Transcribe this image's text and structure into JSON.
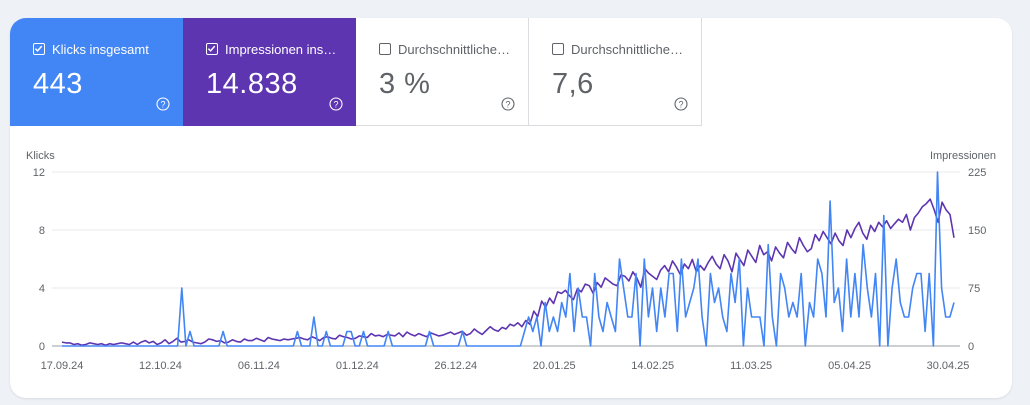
{
  "colors": {
    "clicks": "#4285f4",
    "impressions": "#5e35b1",
    "clicks_line": "#4285f4",
    "impressions_line": "#5e35b1",
    "grid": "#e8eaed",
    "baseline": "#9aa0a6"
  },
  "tiles": [
    {
      "label": "Klicks insgesamt",
      "value": "443",
      "checked": true,
      "bg": "#4285f4",
      "icon": "help-circle-icon"
    },
    {
      "label": "Impressionen ins…",
      "value": "14.838",
      "checked": true,
      "bg": "#5e35b1",
      "icon": "help-circle-icon"
    },
    {
      "label": "Durchschnittliche…",
      "value": "3 %",
      "checked": false,
      "bg": "#ffffff",
      "icon": "help-circle-icon"
    },
    {
      "label": "Durchschnittliche…",
      "value": "7,6",
      "checked": false,
      "bg": "#ffffff",
      "icon": "help-circle-icon"
    }
  ],
  "chart_data": {
    "type": "line",
    "x_start": "17.09.24",
    "x_end": "30.04.25",
    "x_tick_labels": [
      "17.09.24",
      "12.10.24",
      "06.11.24",
      "01.12.24",
      "26.12.24",
      "20.01.25",
      "14.02.25",
      "11.03.25",
      "05.04.25",
      "30.04.25"
    ],
    "y_left": {
      "label": "Klicks",
      "ticks": [
        "12",
        "8",
        "4",
        "0"
      ],
      "lim": [
        0,
        12
      ]
    },
    "y_right": {
      "label": "Impressionen",
      "ticks": [
        "225",
        "150",
        "75",
        "0"
      ],
      "lim": [
        0,
        225
      ]
    },
    "grid": true,
    "series": [
      {
        "name": "Klicks",
        "axis": "left",
        "values": [
          0,
          0,
          0,
          0,
          0,
          0,
          0,
          0,
          0,
          0,
          0,
          0,
          0,
          0,
          0,
          0,
          0,
          0,
          0,
          0,
          0,
          0,
          0,
          0,
          0,
          0,
          0,
          0,
          0,
          4,
          0,
          1,
          0,
          0,
          0,
          0,
          0,
          0,
          0,
          1,
          0,
          0,
          0,
          0,
          0,
          0,
          0,
          0,
          0,
          0,
          0,
          0,
          0,
          0,
          0,
          0,
          0,
          1,
          0,
          0,
          0,
          2,
          0,
          0,
          1,
          0,
          0,
          0,
          0,
          1,
          1,
          0,
          0,
          1,
          0,
          0,
          0,
          0,
          0,
          1,
          0,
          0,
          0,
          0,
          0,
          0,
          0,
          0,
          0,
          1,
          0,
          0,
          0,
          0,
          0,
          0,
          0,
          1,
          0,
          0,
          0,
          0,
          0,
          0,
          0,
          0,
          0,
          0,
          0,
          0,
          0,
          0,
          1,
          2,
          1,
          2,
          0,
          3,
          1,
          2,
          1,
          3,
          2,
          5,
          1,
          4,
          2,
          2,
          0,
          5,
          2,
          1,
          3,
          2,
          1,
          6,
          4,
          2,
          2,
          5,
          0,
          6,
          2,
          4,
          1,
          4,
          2,
          5,
          5,
          1,
          6,
          2,
          3,
          4,
          6,
          2,
          0,
          5,
          3,
          4,
          2,
          1,
          5,
          3,
          6,
          0,
          4,
          2,
          2,
          2,
          0,
          7,
          2,
          0,
          5,
          4,
          2,
          3,
          2,
          5,
          0,
          3,
          2,
          6,
          5,
          2,
          10,
          3,
          4,
          1,
          6,
          2,
          5,
          2,
          7,
          4,
          2,
          5,
          0,
          9,
          0,
          4,
          6,
          3,
          2,
          2,
          4,
          5,
          5,
          1,
          5,
          0,
          12,
          4,
          2,
          2,
          3
        ]
      },
      {
        "name": "Impressionen",
        "axis": "right",
        "values": [
          5,
          4,
          4,
          2,
          3,
          1,
          2,
          4,
          3,
          2,
          3,
          1,
          3,
          2,
          3,
          4,
          3,
          2,
          5,
          2,
          5,
          7,
          4,
          6,
          2,
          4,
          8,
          3,
          6,
          10,
          5,
          6,
          8,
          5,
          4,
          3,
          5,
          9,
          8,
          6,
          7,
          4,
          5,
          8,
          6,
          5,
          9,
          7,
          7,
          10,
          8,
          6,
          11,
          9,
          8,
          7,
          9,
          8,
          9,
          10,
          11,
          9,
          8,
          12,
          10,
          7,
          11,
          12,
          10,
          9,
          14,
          12,
          11,
          9,
          10,
          13,
          12,
          11,
          16,
          13,
          14,
          12,
          15,
          14,
          13,
          17,
          12,
          18,
          15,
          13,
          16,
          14,
          12,
          17,
          15,
          13,
          14,
          16,
          18,
          15,
          17,
          19,
          14,
          16,
          22,
          18,
          15,
          20,
          25,
          21,
          19,
          24,
          22,
          28,
          26,
          30,
          25,
          33,
          28,
          45,
          38,
          58,
          50,
          62,
          55,
          70,
          68,
          72,
          65,
          60,
          74,
          70,
          80,
          78,
          68,
          82,
          76,
          88,
          84,
          80,
          78,
          92,
          90,
          84,
          96,
          88,
          76,
          100,
          94,
          90,
          86,
          98,
          104,
          96,
          110,
          102,
          92,
          106,
          100,
          112,
          96,
          104,
          98,
          108,
          116,
          106,
          100,
          118,
          110,
          96,
          120,
          112,
          104,
          124,
          116,
          108,
          130,
          118,
          122,
          110,
          128,
          120,
          114,
          134,
          126,
          120,
          140,
          130,
          122,
          126,
          144,
          136,
          148,
          140,
          132,
          146,
          136,
          130,
          150,
          140,
          152,
          160,
          146,
          138,
          156,
          148,
          160,
          154,
          162,
          152,
          158,
          164,
          160,
          170,
          150,
          166,
          172,
          180,
          184,
          190,
          176,
          160,
          186,
          176,
          170,
          140
        ]
      }
    ]
  }
}
